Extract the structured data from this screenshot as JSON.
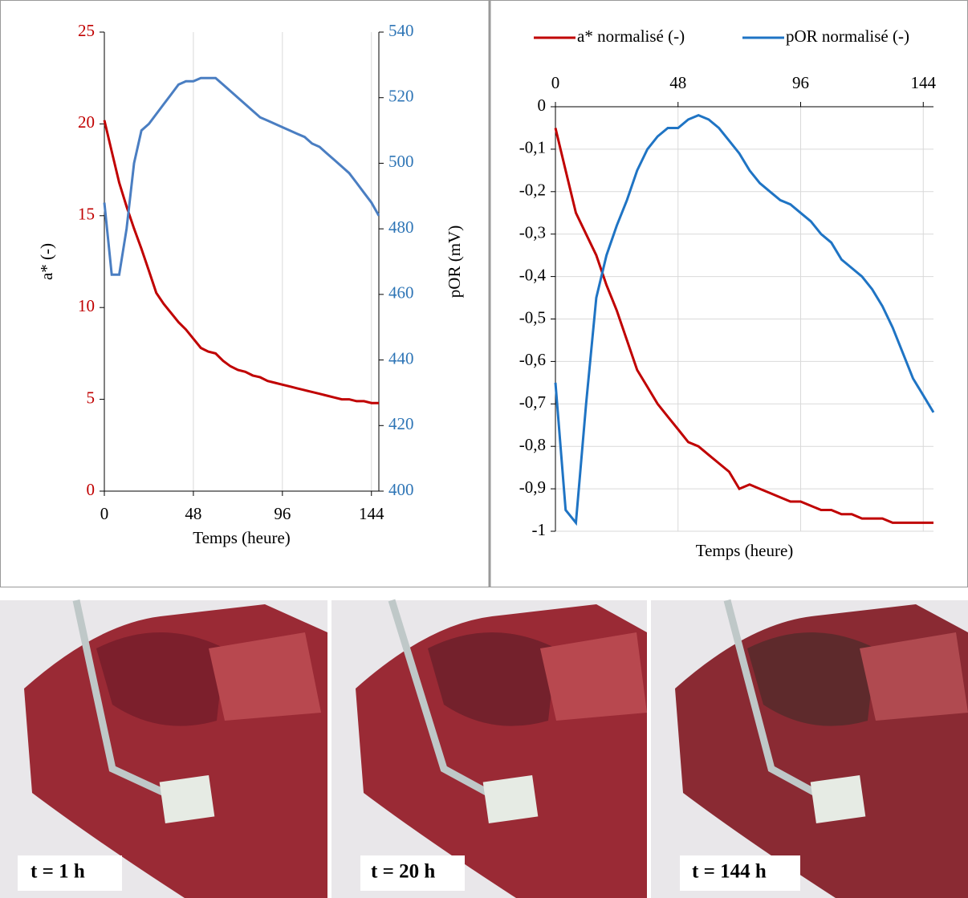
{
  "chart_data": [
    {
      "type": "line",
      "x_label": "Temps (heure)",
      "y_label": "a* (-)",
      "y2_label": "pOR (mV)",
      "x": [
        0,
        4,
        8,
        12,
        16,
        20,
        24,
        28,
        32,
        36,
        40,
        44,
        48,
        52,
        56,
        60,
        64,
        68,
        72,
        76,
        80,
        84,
        88,
        92,
        96,
        100,
        104,
        108,
        112,
        116,
        120,
        124,
        128,
        132,
        136,
        140,
        144,
        148
      ],
      "series": [
        {
          "name": "a*",
          "color": "#c00000",
          "values": [
            20.2,
            18.5,
            16.8,
            15.5,
            14.3,
            13.2,
            12,
            10.8,
            10.2,
            9.7,
            9.2,
            8.8,
            8.3,
            7.8,
            7.6,
            7.5,
            7.1,
            6.8,
            6.6,
            6.5,
            6.3,
            6.2,
            6.0,
            5.9,
            5.8,
            5.7,
            5.6,
            5.5,
            5.4,
            5.3,
            5.2,
            5.1,
            5.0,
            5.0,
            4.9,
            4.9,
            4.8,
            4.8
          ]
        },
        {
          "name": "pOR",
          "color": "#4a7ec2",
          "axis": "y2",
          "values": [
            488,
            466,
            466,
            480,
            500,
            510,
            512,
            515,
            518,
            521,
            524,
            525,
            525,
            526,
            526,
            526,
            524,
            522,
            520,
            518,
            516,
            514,
            513,
            512,
            511,
            510,
            509,
            508,
            506,
            505,
            503,
            501,
            499,
            497,
            494,
            491,
            488,
            484
          ]
        }
      ],
      "xlim": [
        0,
        148
      ],
      "xticks": [
        0,
        48,
        96,
        144
      ],
      "ylim": [
        0,
        25
      ],
      "yticks": [
        0,
        5,
        10,
        15,
        20,
        25
      ],
      "y2lim": [
        400,
        540
      ],
      "y2ticks": [
        400,
        420,
        440,
        460,
        480,
        500,
        520,
        540
      ],
      "grid_x": true,
      "grid_y": false,
      "x_axis_position": "bottom",
      "y_tick_color": "#c00000",
      "y2_tick_color": "#2e75b6"
    },
    {
      "type": "line",
      "x_label": "Temps (heure)",
      "x": [
        0,
        4,
        8,
        12,
        16,
        20,
        24,
        28,
        32,
        36,
        40,
        44,
        48,
        52,
        56,
        60,
        64,
        68,
        72,
        76,
        80,
        84,
        88,
        92,
        96,
        100,
        104,
        108,
        112,
        116,
        120,
        124,
        128,
        132,
        136,
        140,
        144,
        148
      ],
      "series": [
        {
          "name": "a* normalisé (-)",
          "color": "#c00000",
          "values": [
            -0.05,
            -0.15,
            -0.25,
            -0.3,
            -0.35,
            -0.42,
            -0.48,
            -0.55,
            -0.62,
            -0.66,
            -0.7,
            -0.73,
            -0.76,
            -0.79,
            -0.8,
            -0.82,
            -0.84,
            -0.86,
            -0.9,
            -0.89,
            -0.9,
            -0.91,
            -0.92,
            -0.93,
            -0.93,
            -0.94,
            -0.95,
            -0.95,
            -0.96,
            -0.96,
            -0.97,
            -0.97,
            -0.97,
            -0.98,
            -0.98,
            -0.98,
            -0.98,
            -0.98
          ]
        },
        {
          "name": "pOR normalisé (-)",
          "color": "#1f74c4",
          "values": [
            -0.65,
            -0.95,
            -0.98,
            -0.7,
            -0.45,
            -0.35,
            -0.28,
            -0.22,
            -0.15,
            -0.1,
            -0.07,
            -0.05,
            -0.05,
            -0.03,
            -0.02,
            -0.03,
            -0.05,
            -0.08,
            -0.11,
            -0.15,
            -0.18,
            -0.2,
            -0.22,
            -0.23,
            -0.25,
            -0.27,
            -0.3,
            -0.32,
            -0.36,
            -0.38,
            -0.4,
            -0.43,
            -0.47,
            -0.52,
            -0.58,
            -0.64,
            -0.68,
            -0.72
          ]
        }
      ],
      "xlim": [
        0,
        148
      ],
      "xticks": [
        0,
        48,
        96,
        144
      ],
      "ylim": [
        -1,
        0
      ],
      "yticks": [
        -1,
        {
          "value": -0.9,
          "label": "-0,9"
        },
        {
          "value": -0.8,
          "label": "-0,8"
        },
        {
          "value": -0.7,
          "label": "-0,7"
        },
        {
          "value": -0.6,
          "label": "-0,6"
        },
        {
          "value": -0.5,
          "label": "-0,5"
        },
        {
          "value": -0.4,
          "label": "-0,4"
        },
        {
          "value": -0.3,
          "label": "-0,3"
        },
        {
          "value": -0.2,
          "label": "-0,2"
        },
        {
          "value": -0.1,
          "label": "-0,1"
        },
        0
      ],
      "grid_x": true,
      "grid_y": true,
      "x_axis_position": "top",
      "legend": "top",
      "y_tick_color": "#000000"
    }
  ],
  "photos": [
    {
      "label": "t = 1 h"
    },
    {
      "label": "t = 20 h"
    },
    {
      "label": "t = 144 h"
    }
  ]
}
